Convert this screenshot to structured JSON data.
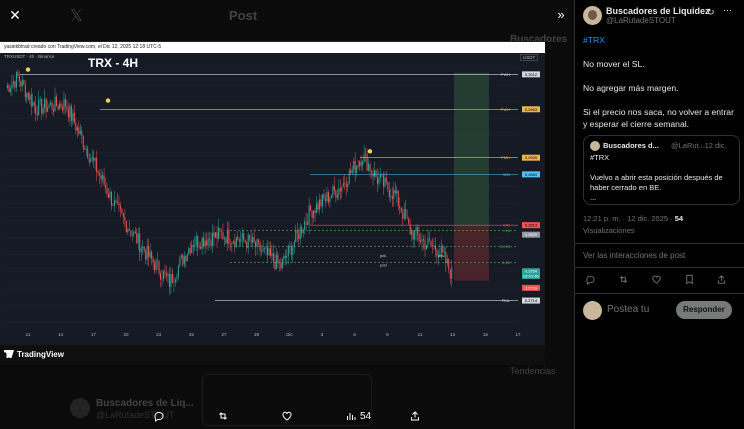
{
  "background": {
    "post_title": "Post",
    "author_name": "Buscadores de Liq...",
    "author_handle": "@LaRutadeSTOUT",
    "sidebar_heading": "Buscadores",
    "sidebar_sub": "Tendencias"
  },
  "media": {
    "header_text": "yasiekbtrad creado con TradingView.com, el Dic 12, 2025 12:18 UTC-5",
    "symbol_line": "TRXUSDT · 4h · Binance",
    "chart_title": "TRX - 4H",
    "quote_currency": "USDT",
    "brand": "TradingView"
  },
  "chart_data": {
    "type": "candlestick",
    "title": "TRX - 4H",
    "x_ticks": [
      "11",
      "14",
      "17",
      "20",
      "23",
      "25",
      "27",
      "29",
      "Dic",
      "3",
      "6",
      "9",
      "11",
      "13",
      "15",
      "17"
    ],
    "y_ticks": [
      "0,3000",
      "0,2980",
      "0,2960",
      "0,2940",
      "0,2920",
      "0,2900",
      "0,2880",
      "0,2860",
      "0,2840",
      "0,2820",
      "0,2800",
      "0,2780",
      "0,2760",
      "0,2740",
      "0,2720",
      "0,2700"
    ],
    "ylim": [
      0.269,
      0.301
    ],
    "level_lines": [
      {
        "label": "PWH",
        "value": 0.3002,
        "price": "0,3012",
        "color": "#d1d4dc"
      },
      {
        "label": "PWH",
        "value": 0.2958,
        "price": "0,2963",
        "color": "#f0b24a"
      },
      {
        "label": "PMH",
        "value": 0.2897,
        "price": "0,2909",
        "color": "#f0b24a"
      },
      {
        "label": "WO",
        "value": 0.2876,
        "price": "0,2869",
        "color": "#4fc3f7"
      },
      {
        "label": "WO",
        "value": 0.2812,
        "price": "0,2813",
        "color": "#ef5350"
      },
      {
        "label": "0,5",
        "value": 0.2805,
        "price": "",
        "color": "#4caf50"
      },
      {
        "label": "0,375",
        "value": 0.2785,
        "price": "",
        "color": "#4caf50"
      },
      {
        "label": "0,25",
        "value": 0.2765,
        "price": "",
        "color": "#4caf50"
      },
      {
        "label": "PML",
        "value": 0.2717,
        "price": "0,2714",
        "color": "#d1d4dc"
      }
    ],
    "annotations": [
      "pdL",
      "pdL",
      "pdd"
    ],
    "price_tags": [
      "0,2800",
      "0,2754",
      "02:41:46",
      "0,2733"
    ]
  },
  "bottom_bar": {
    "views": "54"
  },
  "post": {
    "author_name": "Buscadores de Liquidez",
    "author_handle": "@LaRutadeSTOUT",
    "hashtag": "#TRX",
    "line1": "No mover el SL.",
    "line2": "No agregar más margen.",
    "line3": "Si el precio nos saca, no volver a entrar y esperar el cierre semanal.",
    "quote": {
      "author_name": "Buscadores d...",
      "author_handle": "@LaRut...",
      "date": "· 12 dic.",
      "hashtag": "#TRX",
      "text1": "Vuelvo a abrir esta posición después de haber cerrado en BE.",
      "text2": "..."
    },
    "timestamp": "12:21 p. m. · 12 dic. 2025 ·",
    "views_count": "54",
    "views_label": "Visualizaciones",
    "interactions_link": "Ver las interacciones de post",
    "reply_placeholder": "Postea tu",
    "reply_button": "Responder"
  }
}
